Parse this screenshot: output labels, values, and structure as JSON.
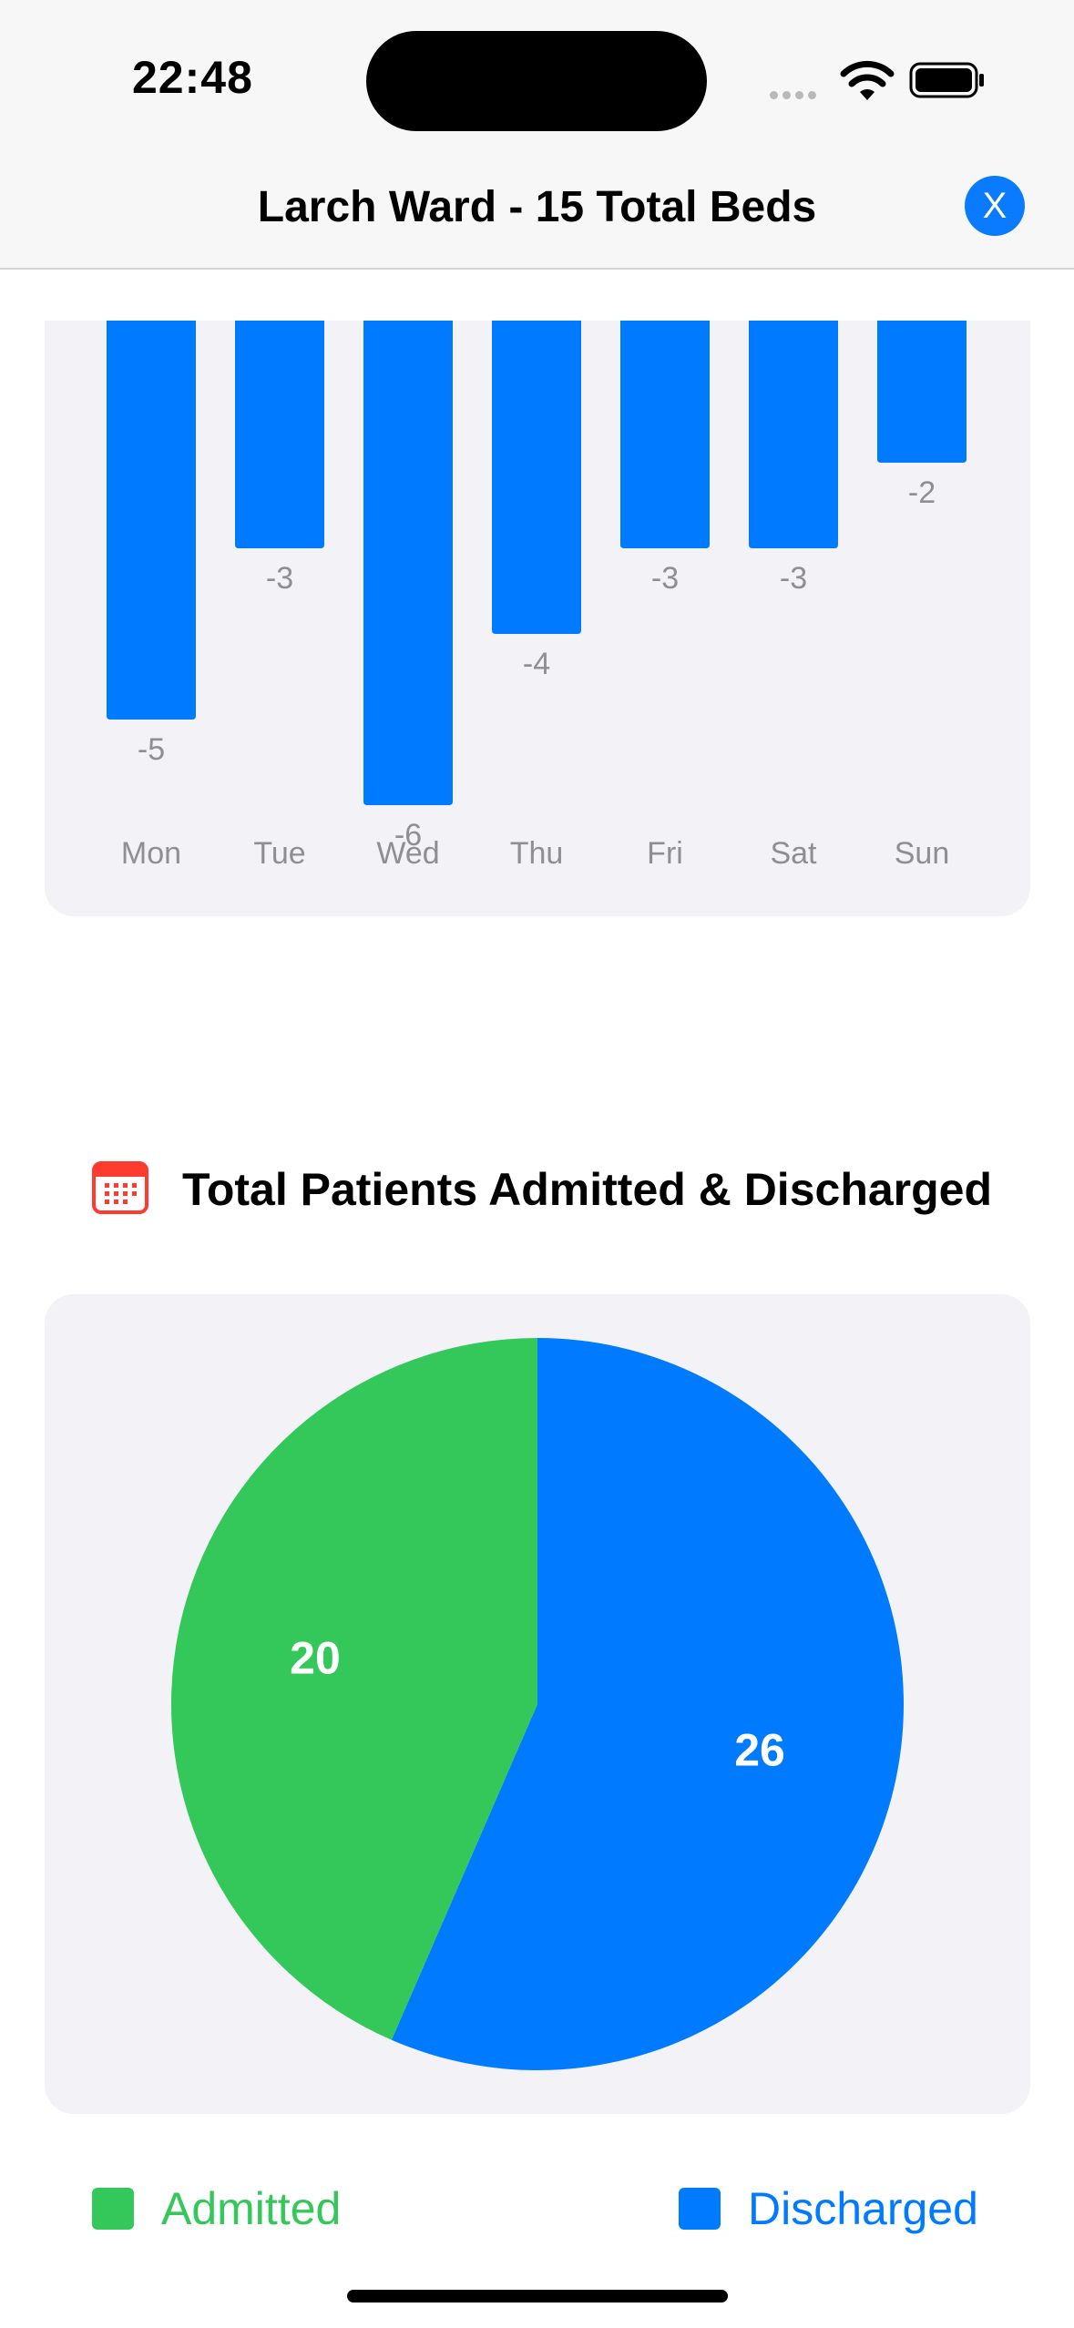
{
  "status_bar": {
    "time": "22:48"
  },
  "header": {
    "title": "Larch Ward - 15 Total Beds",
    "close_label": "X"
  },
  "bar_chart": {
    "chart_data": {
      "type": "bar",
      "categories": [
        "Mon",
        "Tue",
        "Wed",
        "Thu",
        "Fri",
        "Sat",
        "Sun"
      ],
      "values": [
        -5,
        -3,
        -6,
        -4,
        -3,
        -3,
        -2
      ],
      "data_labels": [
        "-5",
        "-3",
        "-6",
        "-4",
        "-3",
        "-3",
        "-2"
      ],
      "color": "#007aff"
    }
  },
  "pie_section": {
    "title": "Total Patients Admitted & Discharged",
    "icon": "calendar-icon"
  },
  "pie_chart": {
    "chart_data": {
      "type": "pie",
      "slices": [
        {
          "name": "Discharged",
          "value": 26,
          "label": "26",
          "color": "#007aff"
        },
        {
          "name": "Admitted",
          "value": 20,
          "label": "20",
          "color": "#34c759"
        }
      ]
    }
  },
  "legend": {
    "admitted": {
      "label": "Admitted",
      "color": "#34c759"
    },
    "discharged": {
      "label": "Discharged",
      "color": "#007aff"
    }
  }
}
